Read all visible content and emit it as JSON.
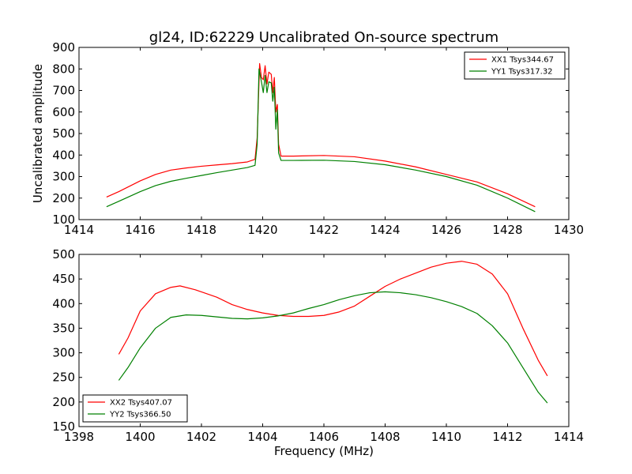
{
  "title": "gl24, ID:62229 Uncalibrated On-source spectrum",
  "colors": {
    "xx": "#ff0000",
    "yy": "#008000"
  },
  "chart_data": [
    {
      "type": "line",
      "ylabel": "Uncalibrated amplitude",
      "xlabel": "",
      "xlim": [
        1414,
        1430
      ],
      "ylim": [
        100,
        900
      ],
      "xticks": [
        1414,
        1416,
        1418,
        1420,
        1422,
        1424,
        1426,
        1428,
        1430
      ],
      "yticks": [
        100,
        200,
        300,
        400,
        500,
        600,
        700,
        800,
        900
      ],
      "grid": false,
      "legend": "top-right",
      "series": [
        {
          "name": "XX1 Tsys344.67",
          "color": "#ff0000",
          "points": [
            [
              1414.9,
              205
            ],
            [
              1415.3,
              230
            ],
            [
              1416.0,
              280
            ],
            [
              1416.5,
              310
            ],
            [
              1417.0,
              330
            ],
            [
              1417.5,
              340
            ],
            [
              1418.0,
              348
            ],
            [
              1418.5,
              354
            ],
            [
              1419.0,
              360
            ],
            [
              1419.5,
              368
            ],
            [
              1419.75,
              380
            ],
            [
              1419.82,
              480
            ],
            [
              1419.9,
              825
            ],
            [
              1419.96,
              760
            ],
            [
              1420.02,
              750
            ],
            [
              1420.08,
              815
            ],
            [
              1420.14,
              730
            ],
            [
              1420.2,
              785
            ],
            [
              1420.28,
              775
            ],
            [
              1420.33,
              690
            ],
            [
              1420.38,
              760
            ],
            [
              1420.43,
              600
            ],
            [
              1420.48,
              635
            ],
            [
              1420.52,
              450
            ],
            [
              1420.6,
              395
            ],
            [
              1421.0,
              395
            ],
            [
              1422.0,
              398
            ],
            [
              1423.0,
              392
            ],
            [
              1424.0,
              372
            ],
            [
              1425.0,
              345
            ],
            [
              1426.0,
              310
            ],
            [
              1427.0,
              275
            ],
            [
              1428.0,
              220
            ],
            [
              1428.9,
              160
            ]
          ]
        },
        {
          "name": "YY1 Tsys317.32",
          "color": "#008000",
          "points": [
            [
              1414.9,
              160
            ],
            [
              1415.3,
              185
            ],
            [
              1416.0,
              230
            ],
            [
              1416.5,
              258
            ],
            [
              1417.0,
              278
            ],
            [
              1417.5,
              292
            ],
            [
              1418.0,
              305
            ],
            [
              1418.5,
              318
            ],
            [
              1419.0,
              330
            ],
            [
              1419.5,
              342
            ],
            [
              1419.75,
              352
            ],
            [
              1419.82,
              450
            ],
            [
              1419.88,
              800
            ],
            [
              1419.96,
              740
            ],
            [
              1420.02,
              690
            ],
            [
              1420.08,
              770
            ],
            [
              1420.14,
              690
            ],
            [
              1420.2,
              740
            ],
            [
              1420.28,
              735
            ],
            [
              1420.33,
              650
            ],
            [
              1420.38,
              715
            ],
            [
              1420.43,
              520
            ],
            [
              1420.48,
              610
            ],
            [
              1420.52,
              410
            ],
            [
              1420.6,
              375
            ],
            [
              1421.0,
              375
            ],
            [
              1422.0,
              376
            ],
            [
              1423.0,
              370
            ],
            [
              1424.0,
              355
            ],
            [
              1425.0,
              330
            ],
            [
              1426.0,
              300
            ],
            [
              1427.0,
              260
            ],
            [
              1428.0,
              200
            ],
            [
              1428.9,
              137
            ]
          ]
        }
      ]
    },
    {
      "type": "line",
      "ylabel": "",
      "xlabel": "Frequency (MHz)",
      "xlim": [
        1398,
        1414
      ],
      "ylim": [
        150,
        500
      ],
      "xticks": [
        1398,
        1400,
        1402,
        1404,
        1406,
        1408,
        1410,
        1412,
        1414
      ],
      "yticks": [
        150,
        200,
        250,
        300,
        350,
        400,
        450,
        500
      ],
      "grid": false,
      "legend": "bottom-left",
      "series": [
        {
          "name": "XX2 Tsys407.07",
          "color": "#ff0000",
          "points": [
            [
              1399.3,
              297
            ],
            [
              1399.6,
              330
            ],
            [
              1400.0,
              385
            ],
            [
              1400.5,
              420
            ],
            [
              1401.0,
              433
            ],
            [
              1401.3,
              436
            ],
            [
              1401.8,
              428
            ],
            [
              1402.5,
              413
            ],
            [
              1403.0,
              398
            ],
            [
              1403.5,
              388
            ],
            [
              1404.0,
              381
            ],
            [
              1404.5,
              376
            ],
            [
              1405.0,
              374
            ],
            [
              1405.5,
              374
            ],
            [
              1406.0,
              376
            ],
            [
              1406.5,
              383
            ],
            [
              1407.0,
              395
            ],
            [
              1407.5,
              415
            ],
            [
              1408.0,
              435
            ],
            [
              1408.5,
              450
            ],
            [
              1409.0,
              462
            ],
            [
              1409.5,
              474
            ],
            [
              1410.0,
              482
            ],
            [
              1410.5,
              486
            ],
            [
              1411.0,
              480
            ],
            [
              1411.5,
              460
            ],
            [
              1412.0,
              420
            ],
            [
              1412.5,
              350
            ],
            [
              1413.0,
              285
            ],
            [
              1413.3,
              253
            ]
          ]
        },
        {
          "name": "YY2 Tsys366.50",
          "color": "#008000",
          "points": [
            [
              1399.3,
              244
            ],
            [
              1399.6,
              270
            ],
            [
              1400.0,
              310
            ],
            [
              1400.5,
              350
            ],
            [
              1401.0,
              372
            ],
            [
              1401.5,
              377
            ],
            [
              1402.0,
              376
            ],
            [
              1402.5,
              373
            ],
            [
              1403.0,
              370
            ],
            [
              1403.5,
              369
            ],
            [
              1404.0,
              371
            ],
            [
              1404.5,
              375
            ],
            [
              1405.0,
              381
            ],
            [
              1405.5,
              390
            ],
            [
              1406.0,
              398
            ],
            [
              1406.5,
              408
            ],
            [
              1407.0,
              416
            ],
            [
              1407.5,
              422
            ],
            [
              1408.0,
              424
            ],
            [
              1408.5,
              422
            ],
            [
              1409.0,
              418
            ],
            [
              1409.5,
              412
            ],
            [
              1410.0,
              404
            ],
            [
              1410.5,
              394
            ],
            [
              1411.0,
              380
            ],
            [
              1411.5,
              355
            ],
            [
              1412.0,
              320
            ],
            [
              1412.5,
              270
            ],
            [
              1413.0,
              220
            ],
            [
              1413.3,
              198
            ]
          ]
        }
      ]
    }
  ]
}
